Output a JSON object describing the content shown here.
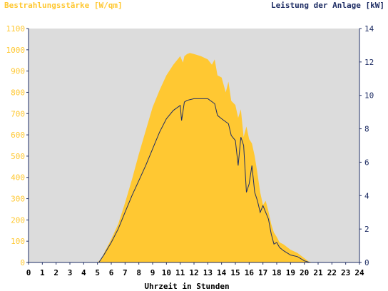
{
  "chart_data": {
    "type": "area",
    "title_left": "Bestrahlungsstärke [W/qm]",
    "title_right": "Leistung der Anlage [kW]",
    "xlabel": "Uhrzeit in Stunden",
    "x_ticks": [
      "0",
      "1",
      "2",
      "3",
      "4",
      "5",
      "6",
      "7",
      "8",
      "9",
      "10",
      "11",
      "12",
      "13",
      "14",
      "15",
      "16",
      "17",
      "18",
      "19",
      "20",
      "21",
      "22",
      "23",
      "24"
    ],
    "xlim": [
      0,
      24
    ],
    "y_left": {
      "lim": [
        0,
        1100
      ],
      "ticks": [
        "0",
        "100",
        "200",
        "300",
        "400",
        "500",
        "600",
        "700",
        "800",
        "900",
        "1000",
        "1100"
      ]
    },
    "y_right": {
      "lim": [
        0,
        14
      ],
      "ticks": [
        "0",
        "2",
        "4",
        "6",
        "8",
        "10",
        "12",
        "14"
      ]
    },
    "colors": {
      "irradiance": "#FFC832",
      "power": "#1E2D64",
      "plot_bg": "#DCDCDC",
      "axis": "#1E2D64"
    },
    "series": [
      {
        "name": "Bestrahlungsstärke",
        "axis": "left",
        "x": [
          0,
          5.0,
          5.3,
          5.6,
          6.0,
          6.5,
          7.0,
          7.5,
          8.0,
          8.5,
          9.0,
          9.5,
          10.0,
          10.5,
          11.0,
          11.2,
          11.3,
          11.5,
          11.7,
          12.0,
          12.5,
          13.0,
          13.3,
          13.5,
          13.7,
          14.0,
          14.3,
          14.5,
          14.7,
          15.0,
          15.2,
          15.4,
          15.6,
          15.8,
          16.0,
          16.2,
          16.4,
          16.6,
          16.8,
          17.0,
          17.2,
          17.4,
          17.6,
          17.8,
          18.0,
          18.2,
          18.5,
          19.0,
          19.5,
          20.0,
          20.3,
          20.6,
          24
        ],
        "values": [
          0,
          0,
          20,
          60,
          110,
          180,
          280,
          390,
          510,
          620,
          730,
          810,
          880,
          930,
          970,
          940,
          970,
          980,
          985,
          980,
          970,
          955,
          930,
          955,
          880,
          870,
          800,
          850,
          760,
          740,
          680,
          720,
          590,
          640,
          580,
          560,
          500,
          420,
          330,
          270,
          290,
          240,
          180,
          140,
          120,
          95,
          85,
          60,
          45,
          20,
          5,
          0,
          0
        ]
      },
      {
        "name": "Leistung",
        "axis": "right",
        "x": [
          0,
          5.1,
          5.5,
          6.0,
          6.5,
          7.0,
          7.5,
          8.0,
          8.5,
          9.0,
          9.5,
          10.0,
          10.5,
          11.0,
          11.1,
          11.3,
          11.5,
          12.0,
          12.5,
          13.0,
          13.5,
          13.7,
          14.0,
          14.5,
          14.7,
          15.0,
          15.2,
          15.4,
          15.6,
          15.8,
          16.0,
          16.2,
          16.4,
          16.6,
          16.8,
          17.0,
          17.2,
          17.4,
          17.6,
          17.8,
          18.0,
          18.2,
          18.5,
          19.0,
          19.5,
          20.0,
          20.4,
          24
        ],
        "values": [
          0,
          0,
          0.5,
          1.2,
          2.0,
          3.0,
          4.0,
          4.9,
          5.8,
          6.8,
          7.8,
          8.6,
          9.1,
          9.4,
          8.5,
          9.6,
          9.7,
          9.8,
          9.8,
          9.8,
          9.5,
          8.8,
          8.6,
          8.3,
          7.6,
          7.3,
          5.8,
          7.5,
          7.0,
          4.2,
          4.7,
          5.8,
          4.2,
          3.7,
          3.0,
          3.4,
          3.0,
          2.6,
          1.7,
          1.1,
          1.2,
          0.9,
          0.7,
          0.45,
          0.35,
          0.1,
          0,
          0
        ]
      }
    ],
    "grid": false,
    "legend": "none"
  }
}
